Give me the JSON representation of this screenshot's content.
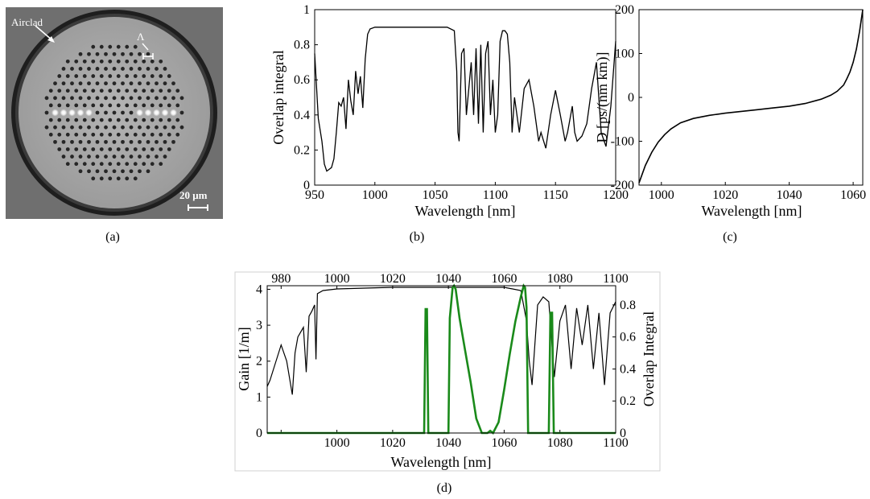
{
  "panel_labels": [
    "(a)",
    "(b)",
    "(c)",
    "(d)"
  ],
  "micrograph": {
    "airclad_label": "Airclad",
    "pitch_label": "Λ",
    "scale_label": "20 μm"
  },
  "chart_data": [
    {
      "id": "b",
      "type": "line",
      "title": "",
      "xlabel": "Wavelength [nm]",
      "ylabel": "Overlap integral",
      "xlim": [
        950,
        1200
      ],
      "ylim": [
        0,
        1
      ],
      "xticks": [
        950,
        1000,
        1050,
        1100,
        1150,
        1200
      ],
      "yticks": [
        0,
        0.2,
        0.4,
        0.6,
        0.8,
        1
      ],
      "ytick_labels": [
        "0",
        "0.2",
        "0.4",
        "0.6",
        "0.8",
        "1"
      ],
      "grid": false,
      "color": "#000000",
      "series": [
        {
          "x": [
            950,
            953,
            956,
            958,
            960,
            962,
            964,
            966,
            968,
            970,
            972,
            974,
            976,
            978,
            980,
            982,
            984,
            986,
            988,
            990,
            992,
            994,
            996,
            1000,
            1020,
            1040,
            1060,
            1066,
            1068,
            1069,
            1070,
            1072,
            1074,
            1076,
            1078,
            1080,
            1082,
            1084,
            1086,
            1088,
            1090,
            1092,
            1094,
            1096,
            1098,
            1100,
            1102,
            1104,
            1106,
            1108,
            1110,
            1112,
            1114,
            1116,
            1120,
            1124,
            1128,
            1132,
            1136,
            1138,
            1142,
            1146,
            1150,
            1154,
            1158,
            1160,
            1164,
            1166,
            1168,
            1172,
            1176,
            1180,
            1184,
            1188,
            1192,
            1196,
            1200
          ],
          "y": [
            0.75,
            0.38,
            0.25,
            0.12,
            0.08,
            0.09,
            0.1,
            0.15,
            0.3,
            0.47,
            0.45,
            0.5,
            0.32,
            0.6,
            0.48,
            0.4,
            0.65,
            0.52,
            0.62,
            0.44,
            0.72,
            0.86,
            0.89,
            0.9,
            0.9,
            0.9,
            0.9,
            0.88,
            0.65,
            0.3,
            0.25,
            0.75,
            0.78,
            0.4,
            0.55,
            0.7,
            0.4,
            0.78,
            0.35,
            0.8,
            0.3,
            0.75,
            0.82,
            0.4,
            0.6,
            0.3,
            0.4,
            0.82,
            0.88,
            0.88,
            0.86,
            0.7,
            0.3,
            0.5,
            0.3,
            0.55,
            0.6,
            0.45,
            0.25,
            0.3,
            0.21,
            0.4,
            0.54,
            0.4,
            0.25,
            0.3,
            0.45,
            0.3,
            0.25,
            0.28,
            0.35,
            0.55,
            0.7,
            0.3,
            0.22,
            0.45,
            0.82
          ]
        }
      ]
    },
    {
      "id": "c",
      "type": "line",
      "title": "",
      "xlabel": "Wavelength [nm]",
      "ylabel": "D [ps/(nm km)]",
      "xlim": [
        993,
        1063
      ],
      "ylim": [
        -200,
        200
      ],
      "xticks": [
        1000,
        1020,
        1040,
        1060
      ],
      "yticks": [
        -200,
        -100,
        0,
        100,
        200
      ],
      "grid": false,
      "color": "#000000",
      "series": [
        {
          "x": [
            993,
            995,
            997,
            999,
            1001,
            1003,
            1006,
            1010,
            1015,
            1020,
            1025,
            1030,
            1035,
            1040,
            1045,
            1050,
            1053,
            1055,
            1057,
            1058,
            1059,
            1060,
            1061,
            1062,
            1063
          ],
          "y": [
            -195,
            -155,
            -125,
            -102,
            -85,
            -72,
            -58,
            -48,
            -41,
            -36,
            -32,
            -28,
            -24,
            -20,
            -14,
            -4,
            5,
            14,
            28,
            42,
            58,
            80,
            110,
            150,
            200
          ]
        }
      ]
    },
    {
      "id": "d",
      "type": "line",
      "title": "",
      "xlabel": "Wavelength [nm]",
      "ylabel": "Gain [1/m]",
      "y2label": "Overlap Integral",
      "xlim": [
        975,
        1100
      ],
      "ylim": [
        0,
        4.1
      ],
      "y2lim": [
        0,
        0.92
      ],
      "xticks": [
        980,
        1000,
        1020,
        1040,
        1060,
        1080,
        1100
      ],
      "xticks_bottom": [
        1000,
        1020,
        1040,
        1060,
        1080,
        1100
      ],
      "yticks": [
        0,
        1,
        2,
        3,
        4
      ],
      "y2ticks": [
        0,
        0.2,
        0.4,
        0.6,
        0.8
      ],
      "grid": false,
      "series": [
        {
          "axis": "right",
          "color": "#000000",
          "x": [
            975,
            976,
            978,
            980,
            982,
            984,
            985,
            986,
            988,
            989,
            990,
            991,
            992,
            992.5,
            993,
            995,
            1000,
            1020,
            1040,
            1060,
            1066,
            1068,
            1069,
            1070,
            1072,
            1074,
            1076,
            1078,
            1080,
            1082,
            1084,
            1086,
            1088,
            1090,
            1092,
            1094,
            1096,
            1098,
            1100
          ],
          "y": [
            0.29,
            0.33,
            0.44,
            0.55,
            0.45,
            0.24,
            0.5,
            0.6,
            0.66,
            0.38,
            0.73,
            0.76,
            0.8,
            0.46,
            0.87,
            0.89,
            0.9,
            0.91,
            0.91,
            0.91,
            0.89,
            0.7,
            0.45,
            0.3,
            0.8,
            0.85,
            0.82,
            0.35,
            0.7,
            0.8,
            0.4,
            0.78,
            0.55,
            0.8,
            0.4,
            0.75,
            0.3,
            0.75,
            0.82
          ]
        },
        {
          "axis": "left",
          "color": "#1a8a1a",
          "x": [
            975,
            1030,
            1031.3,
            1031.8,
            1032.3,
            1032.8,
            1040,
            1040.5,
            1041.5,
            1042,
            1042.6,
            1044,
            1046,
            1048,
            1050,
            1052,
            1054,
            1055,
            1056,
            1058,
            1060,
            1062,
            1064,
            1066,
            1067,
            1067.5,
            1068,
            1068.6,
            1076,
            1076.6,
            1077.2,
            1077.8,
            1100
          ],
          "y": [
            0,
            0,
            0,
            3.45,
            3.45,
            0,
            0,
            3.2,
            4.05,
            4.1,
            4.0,
            3.2,
            2.3,
            1.4,
            0.4,
            0,
            0,
            0.06,
            0,
            0.3,
            1.2,
            2.2,
            3.1,
            3.8,
            4.1,
            4.05,
            3.5,
            0,
            0,
            3.35,
            3.35,
            0,
            0
          ]
        }
      ]
    }
  ]
}
